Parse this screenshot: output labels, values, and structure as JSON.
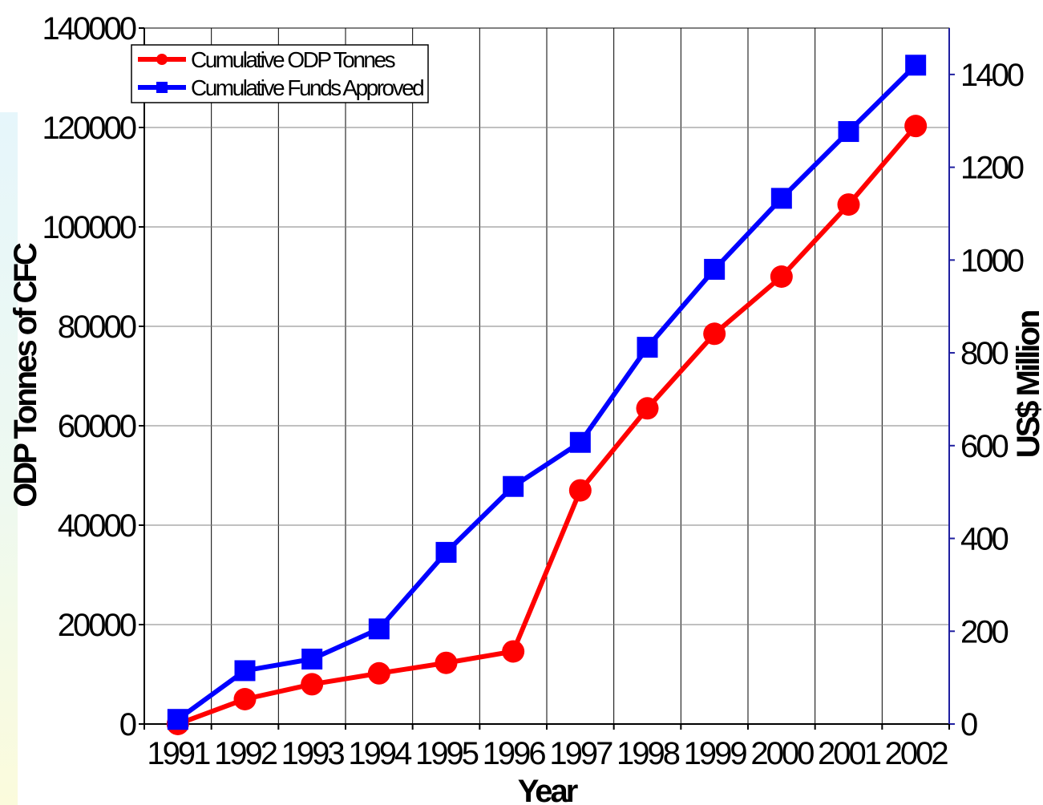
{
  "chart_data": {
    "type": "line",
    "categories": [
      "1991",
      "1992",
      "1993",
      "1994",
      "1995",
      "1996",
      "1997",
      "1998",
      "1999",
      "2000",
      "2001",
      "2002"
    ],
    "xlabel": "Year",
    "ylabel": "ODP Tonnes of CFC",
    "y2label": "US$ Million",
    "ylim": [
      0,
      140000
    ],
    "yticks": [
      0,
      20000,
      40000,
      60000,
      80000,
      100000,
      120000,
      140000
    ],
    "y2lim": [
      0,
      1500
    ],
    "y2ticks": [
      0,
      200,
      400,
      600,
      800,
      1000,
      1200,
      1400
    ],
    "grid": true,
    "legend_position": "top-left",
    "series": [
      {
        "name": "Cumulative ODP Tonnes",
        "axis": "left",
        "color": "#ff0000",
        "marker": "circle",
        "values": [
          0,
          5000,
          8000,
          10200,
          12300,
          14600,
          47000,
          63500,
          78500,
          90000,
          104500,
          120300
        ]
      },
      {
        "name": "Cumulative Funds Approved",
        "axis": "right",
        "color": "#0000ff",
        "marker": "square",
        "values": [
          10,
          115,
          140,
          205,
          370,
          512,
          607,
          812,
          980,
          1133,
          1277,
          1420
        ]
      }
    ]
  }
}
